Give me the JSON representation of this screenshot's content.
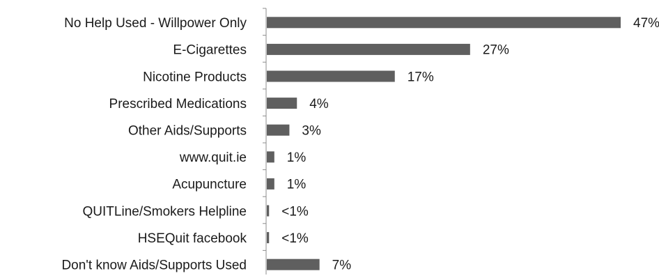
{
  "chart_data": {
    "type": "bar",
    "orientation": "horizontal",
    "categories": [
      "No Help Used - Willpower Only",
      "E-Cigarettes",
      "Nicotine Products",
      "Prescribed Medications",
      "Other Aids/Supports",
      "www.quit.ie",
      "Acupuncture",
      "QUITLine/Smokers Helpline",
      "HSEQuit facebook",
      "Don't know Aids/Supports Used"
    ],
    "values": [
      47,
      27,
      17,
      4,
      3,
      1,
      1,
      0.3,
      0.3,
      7
    ],
    "data_labels": [
      "47%",
      "27%",
      "17%",
      "4%",
      "3%",
      "1%",
      "1%",
      "<1%",
      "<1%",
      "7%"
    ],
    "value_unit": "%",
    "xlim": [
      0,
      47
    ],
    "grid": false,
    "legend": "none",
    "bar_color": "#5f5f5f",
    "axis_color": "#8c8c8c",
    "text_color": "#1a1a1a"
  }
}
